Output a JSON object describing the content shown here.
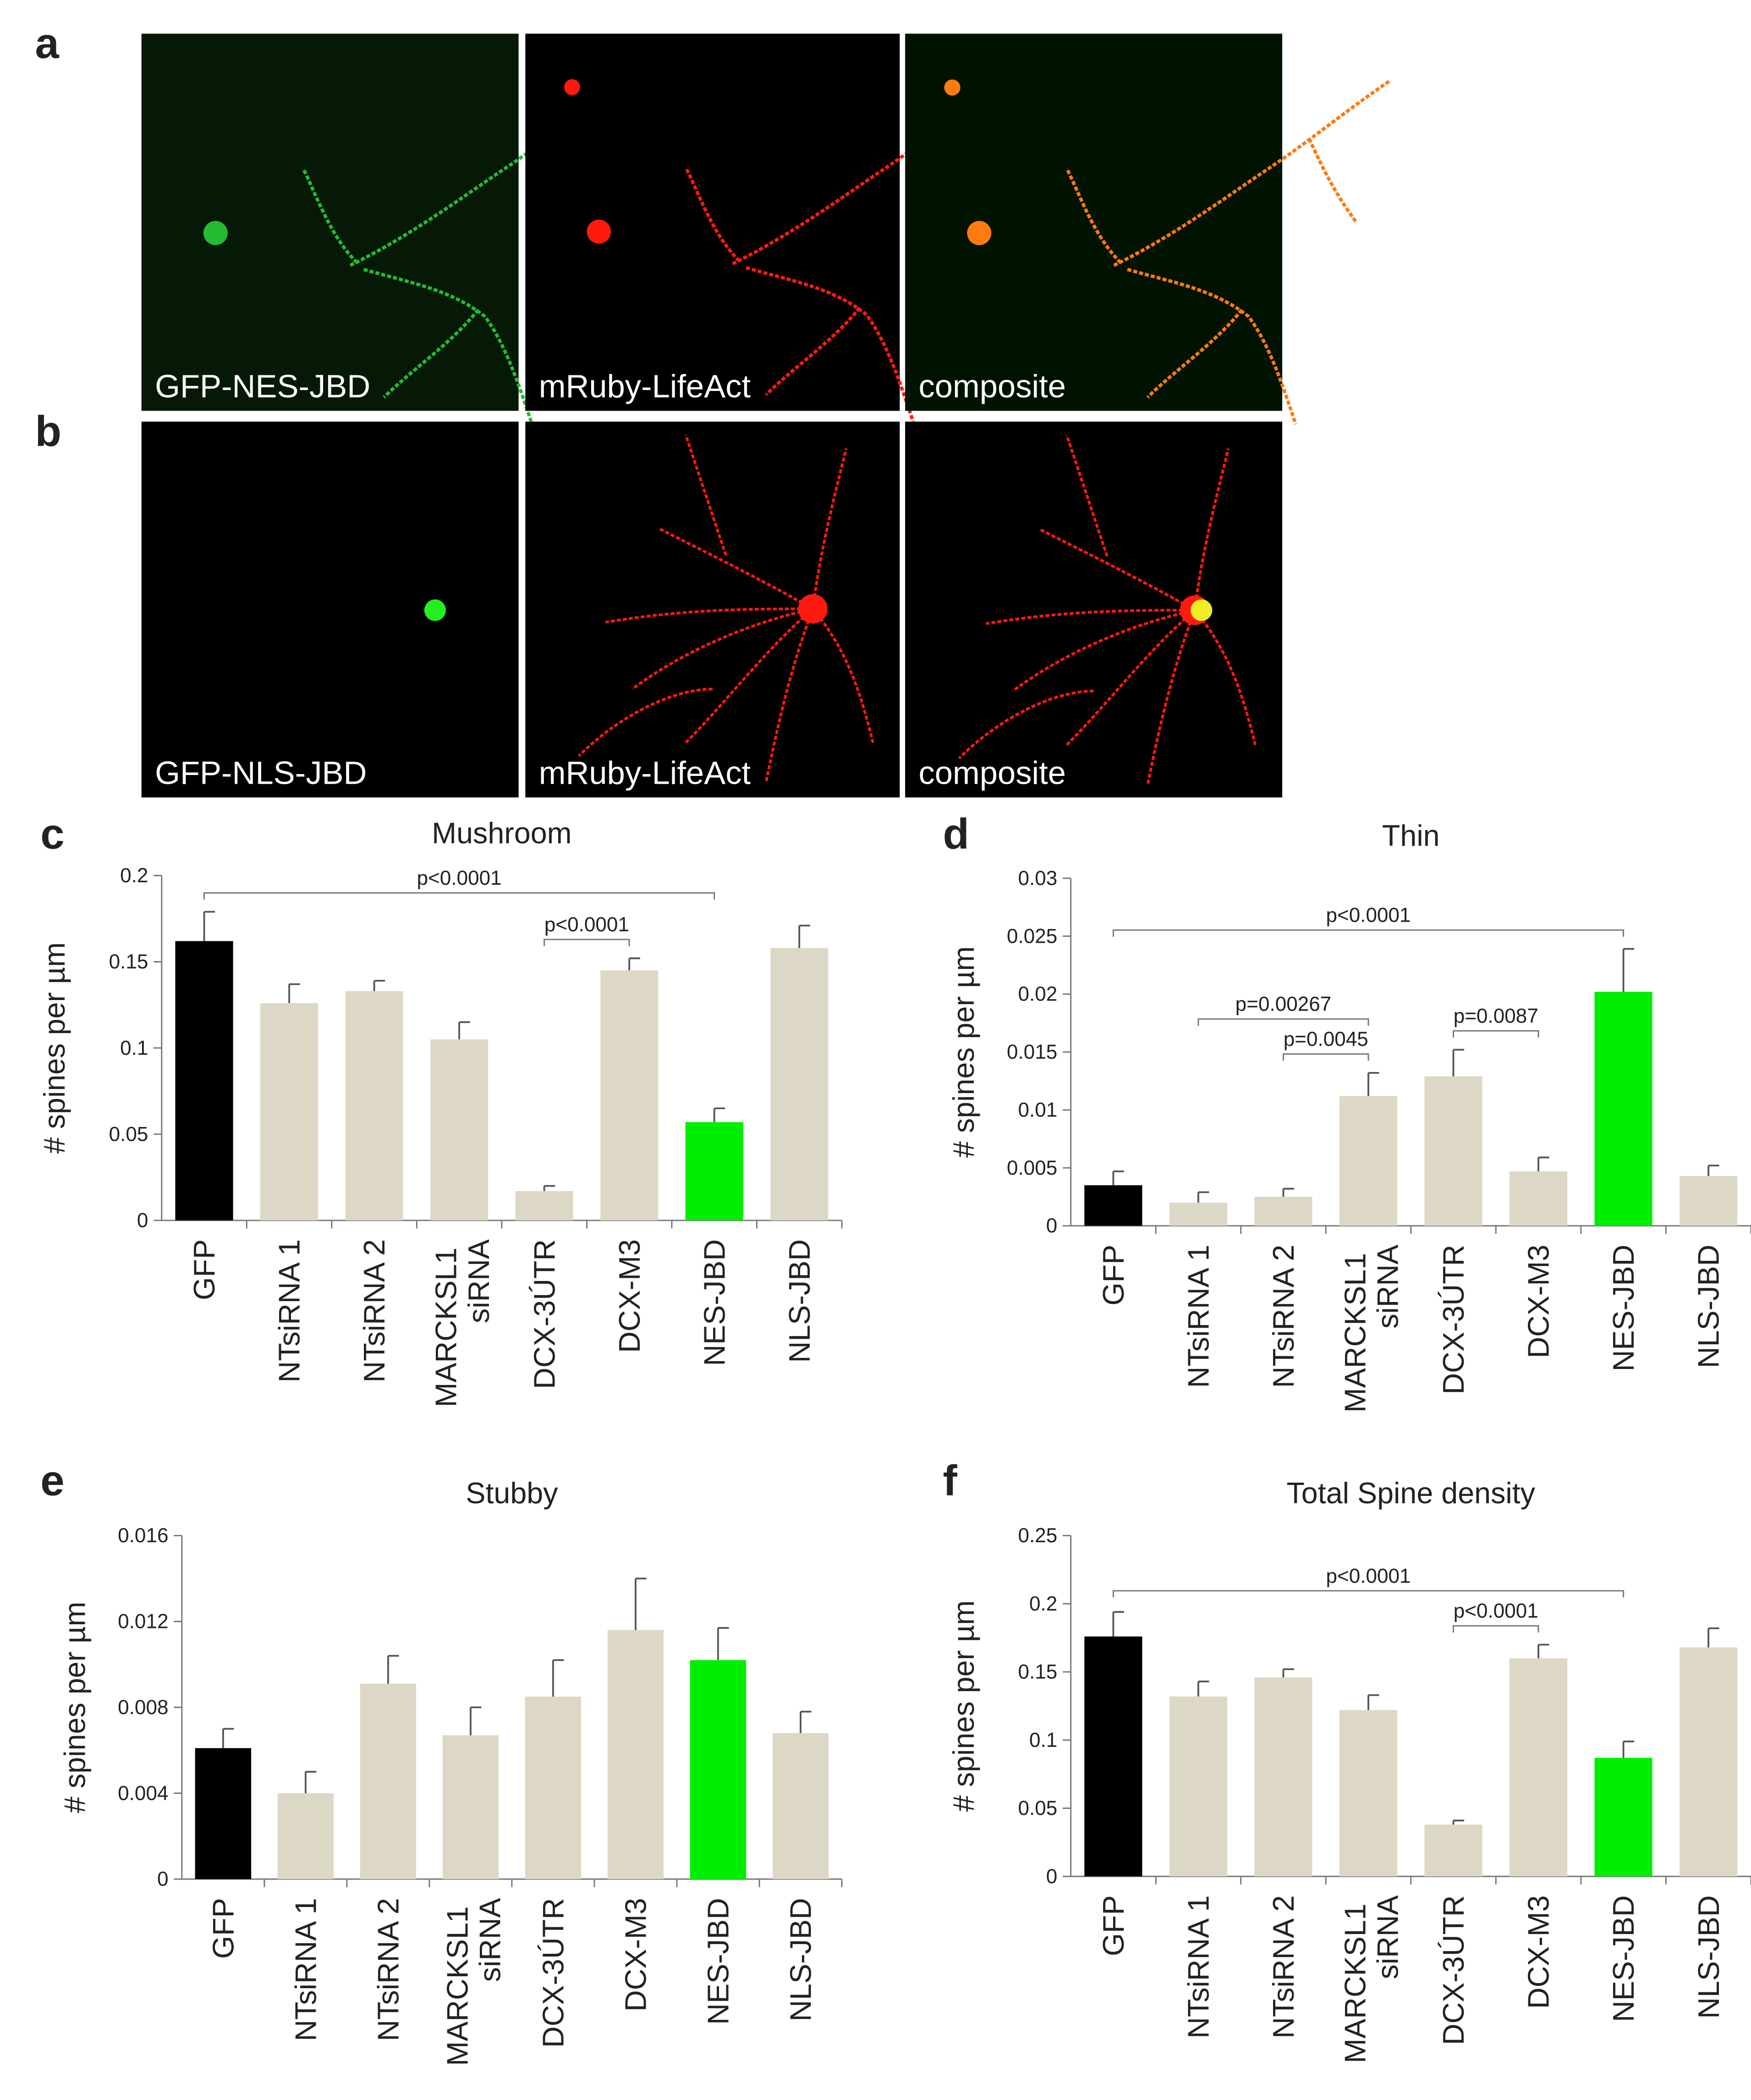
{
  "images": [
    {
      "label": "a",
      "captions": [
        "GFP-NES-JBD",
        "mRuby-LifeAct",
        "composite"
      ]
    },
    {
      "label": "b",
      "captions": [
        "GFP-NLS-JBD",
        "mRuby-LifeAct",
        "composite"
      ]
    }
  ],
  "chart_data": [
    {
      "type": "bar",
      "label": "c",
      "title": "Mushroom",
      "ylabel": "# spines per µm",
      "categories": [
        "GFP",
        "NTsiRNA 1",
        "NTsiRNA 2",
        "MARCKSL1 siRNA",
        "DCX-3ÚTR",
        "DCX-M3",
        "NES-JBD",
        "NLS-JBD"
      ],
      "values": [
        0.162,
        0.126,
        0.133,
        0.105,
        0.017,
        0.145,
        0.057,
        0.158
      ],
      "errors": [
        0.017,
        0.011,
        0.006,
        0.01,
        0.003,
        0.007,
        0.008,
        0.013
      ],
      "colors": [
        "#000000",
        "#ddd8c6",
        "#ddd8c6",
        "#ddd8c6",
        "#ddd8c6",
        "#ddd8c6",
        "#00ee00",
        "#ddd8c6"
      ],
      "ylim": [
        0,
        0.2
      ],
      "yticks": [
        0,
        0.05,
        0.1,
        0.15,
        0.2
      ],
      "annotations": [
        {
          "text": "p<0.0001",
          "from": 0,
          "to": 6
        },
        {
          "text": "p<0.0001",
          "from": 4,
          "to": 5
        }
      ]
    },
    {
      "type": "bar",
      "label": "d",
      "title": "Thin",
      "ylabel": "# spines per µm",
      "categories": [
        "GFP",
        "NTsiRNA 1",
        "NTsiRNA 2",
        "MARCKSL1 siRNA",
        "DCX-3ÚTR",
        "DCX-M3",
        "NES-JBD",
        "NLS-JBD"
      ],
      "values": [
        0.0035,
        0.002,
        0.0025,
        0.0112,
        0.0129,
        0.0047,
        0.0202,
        0.0043
      ],
      "errors": [
        0.0012,
        0.0009,
        0.0007,
        0.002,
        0.0023,
        0.0012,
        0.0037,
        0.0009
      ],
      "colors": [
        "#000000",
        "#ddd8c6",
        "#ddd8c6",
        "#ddd8c6",
        "#ddd8c6",
        "#ddd8c6",
        "#00ee00",
        "#ddd8c6"
      ],
      "ylim": [
        0,
        0.03
      ],
      "yticks": [
        0,
        0.005,
        0.01,
        0.015,
        0.02,
        0.025,
        0.03
      ],
      "annotations": [
        {
          "text": "p<0.0001",
          "from": 0,
          "to": 6
        },
        {
          "text": "p=0.00267",
          "from": 1,
          "to": 3
        },
        {
          "text": "p=0.0045",
          "from": 2,
          "to": 3
        },
        {
          "text": "p=0.0087",
          "from": 4,
          "to": 5
        }
      ]
    },
    {
      "type": "bar",
      "label": "e",
      "title": "Stubby",
      "ylabel": "# spines per µm",
      "categories": [
        "GFP",
        "NTsiRNA 1",
        "NTsiRNA 2",
        "MARCKSL1 siRNA",
        "DCX-3ÚTR",
        "DCX-M3",
        "NES-JBD",
        "NLS-JBD"
      ],
      "values": [
        0.0061,
        0.004,
        0.0091,
        0.0067,
        0.0085,
        0.0116,
        0.0102,
        0.0068
      ],
      "errors": [
        0.0009,
        0.001,
        0.0013,
        0.0013,
        0.0017,
        0.0024,
        0.0015,
        0.001
      ],
      "colors": [
        "#000000",
        "#ddd8c6",
        "#ddd8c6",
        "#ddd8c6",
        "#ddd8c6",
        "#ddd8c6",
        "#00ee00",
        "#ddd8c6"
      ],
      "ylim": [
        0,
        0.016
      ],
      "yticks": [
        0,
        0.004,
        0.008,
        0.012,
        0.016
      ],
      "annotations": []
    },
    {
      "type": "bar",
      "label": "f",
      "title": "Total Spine density",
      "ylabel": "# spines per µm",
      "categories": [
        "GFP",
        "NTsiRNA 1",
        "NTsiRNA 2",
        "MARCKSL1 siRNA",
        "DCX-3ÚTR",
        "DCX-M3",
        "NES-JBD",
        "NLS-JBD"
      ],
      "values": [
        0.176,
        0.132,
        0.146,
        0.122,
        0.038,
        0.16,
        0.087,
        0.168
      ],
      "errors": [
        0.018,
        0.011,
        0.006,
        0.011,
        0.003,
        0.01,
        0.012,
        0.014
      ],
      "colors": [
        "#000000",
        "#ddd8c6",
        "#ddd8c6",
        "#ddd8c6",
        "#ddd8c6",
        "#ddd8c6",
        "#00ee00",
        "#ddd8c6"
      ],
      "ylim": [
        0,
        0.25
      ],
      "yticks": [
        0,
        0.05,
        0.1,
        0.15,
        0.2,
        0.25
      ],
      "annotations": [
        {
          "text": "p<0.0001",
          "from": 0,
          "to": 6
        },
        {
          "text": "p<0.0001",
          "from": 4,
          "to": 5
        }
      ]
    }
  ]
}
